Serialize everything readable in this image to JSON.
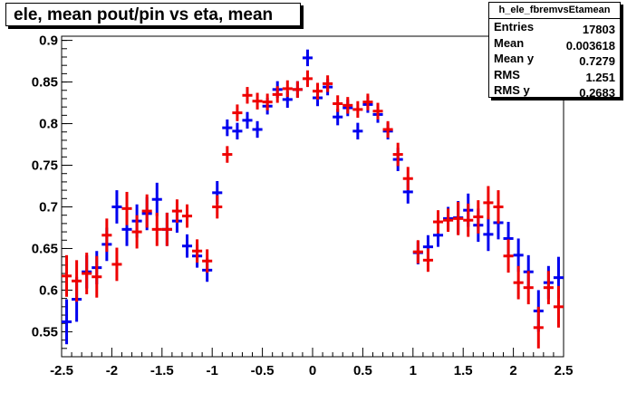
{
  "title": "ele, mean pout/pin vs eta, mean",
  "stats": {
    "name": "h_ele_fbremvsEtamean",
    "rows": [
      {
        "label": "Entries",
        "value": "17803"
      },
      {
        "label": "Mean",
        "value": "0.003618"
      },
      {
        "label": "Mean y",
        "value": "0.7279"
      },
      {
        "label": "RMS",
        "value": "1.251"
      },
      {
        "label": "RMS y",
        "value": "0.2683"
      }
    ]
  },
  "chart_data": {
    "type": "scatter",
    "title": "ele, mean pout/pin vs eta, mean",
    "xlabel": "",
    "ylabel": "",
    "xlim": [
      -2.5,
      2.5
    ],
    "ylim": [
      0.52,
      0.905
    ],
    "xticks": [
      -2.5,
      -2,
      -1.5,
      -1,
      -0.5,
      0,
      0.5,
      1,
      1.5,
      2,
      2.5
    ],
    "xtick_labels": [
      "-2.5",
      "-2",
      "-1.5",
      "-1",
      "-0.5",
      "0",
      "0.5",
      "1",
      "1.5",
      "2",
      "2.5"
    ],
    "yticks": [
      0.55,
      0.6,
      0.65,
      0.7,
      0.75,
      0.8,
      0.85,
      0.9
    ],
    "ytick_labels": [
      "0.55",
      "0.6",
      "0.65",
      "0.7",
      "0.75",
      "0.8",
      "0.85",
      "0.9"
    ],
    "bin_half_width": 0.05,
    "series": [
      {
        "color": "#0000ee",
        "points": [
          {
            "x": -2.45,
            "y": 0.562,
            "err": 0.027
          },
          {
            "x": -2.35,
            "y": 0.589,
            "err": 0.027
          },
          {
            "x": -2.25,
            "y": 0.622,
            "err": 0.02
          },
          {
            "x": -2.15,
            "y": 0.627,
            "err": 0.02
          },
          {
            "x": -2.05,
            "y": 0.655,
            "err": 0.02
          },
          {
            "x": -1.95,
            "y": 0.7,
            "err": 0.02
          },
          {
            "x": -1.85,
            "y": 0.673,
            "err": 0.02
          },
          {
            "x": -1.75,
            "y": 0.683,
            "err": 0.02
          },
          {
            "x": -1.65,
            "y": 0.692,
            "err": 0.02
          },
          {
            "x": -1.55,
            "y": 0.709,
            "err": 0.02
          },
          {
            "x": -1.45,
            "y": 0.673,
            "err": 0.02
          },
          {
            "x": -1.35,
            "y": 0.683,
            "err": 0.014
          },
          {
            "x": -1.25,
            "y": 0.653,
            "err": 0.014
          },
          {
            "x": -1.15,
            "y": 0.641,
            "err": 0.014
          },
          {
            "x": -1.05,
            "y": 0.624,
            "err": 0.014
          },
          {
            "x": -0.95,
            "y": 0.717,
            "err": 0.014
          },
          {
            "x": -0.85,
            "y": 0.795,
            "err": 0.01
          },
          {
            "x": -0.75,
            "y": 0.791,
            "err": 0.01
          },
          {
            "x": -0.65,
            "y": 0.804,
            "err": 0.01
          },
          {
            "x": -0.55,
            "y": 0.793,
            "err": 0.01
          },
          {
            "x": -0.45,
            "y": 0.821,
            "err": 0.01
          },
          {
            "x": -0.35,
            "y": 0.841,
            "err": 0.01
          },
          {
            "x": -0.25,
            "y": 0.829,
            "err": 0.01
          },
          {
            "x": -0.15,
            "y": 0.841,
            "err": 0.01
          },
          {
            "x": -0.05,
            "y": 0.879,
            "err": 0.01
          },
          {
            "x": 0.05,
            "y": 0.831,
            "err": 0.01
          },
          {
            "x": 0.15,
            "y": 0.844,
            "err": 0.01
          },
          {
            "x": 0.25,
            "y": 0.808,
            "err": 0.01
          },
          {
            "x": 0.35,
            "y": 0.819,
            "err": 0.01
          },
          {
            "x": 0.45,
            "y": 0.791,
            "err": 0.01
          },
          {
            "x": 0.55,
            "y": 0.823,
            "err": 0.01
          },
          {
            "x": 0.65,
            "y": 0.811,
            "err": 0.01
          },
          {
            "x": 0.75,
            "y": 0.791,
            "err": 0.01
          },
          {
            "x": 0.85,
            "y": 0.757,
            "err": 0.014
          },
          {
            "x": 0.95,
            "y": 0.718,
            "err": 0.014
          },
          {
            "x": 1.05,
            "y": 0.645,
            "err": 0.014
          },
          {
            "x": 1.15,
            "y": 0.652,
            "err": 0.014
          },
          {
            "x": 1.25,
            "y": 0.666,
            "err": 0.014
          },
          {
            "x": 1.35,
            "y": 0.686,
            "err": 0.014
          },
          {
            "x": 1.45,
            "y": 0.687,
            "err": 0.02
          },
          {
            "x": 1.55,
            "y": 0.696,
            "err": 0.02
          },
          {
            "x": 1.65,
            "y": 0.678,
            "err": 0.02
          },
          {
            "x": 1.75,
            "y": 0.667,
            "err": 0.02
          },
          {
            "x": 1.85,
            "y": 0.681,
            "err": 0.02
          },
          {
            "x": 1.95,
            "y": 0.662,
            "err": 0.02
          },
          {
            "x": 2.05,
            "y": 0.642,
            "err": 0.02
          },
          {
            "x": 2.15,
            "y": 0.622,
            "err": 0.02
          },
          {
            "x": 2.25,
            "y": 0.575,
            "err": 0.025
          },
          {
            "x": 2.35,
            "y": 0.609,
            "err": 0.02
          },
          {
            "x": 2.45,
            "y": 0.615,
            "err": 0.025
          }
        ]
      },
      {
        "color": "#ee0000",
        "points": [
          {
            "x": -2.45,
            "y": 0.617,
            "err": 0.025
          },
          {
            "x": -2.35,
            "y": 0.611,
            "err": 0.025
          },
          {
            "x": -2.25,
            "y": 0.62,
            "err": 0.025
          },
          {
            "x": -2.15,
            "y": 0.616,
            "err": 0.025
          },
          {
            "x": -2.05,
            "y": 0.666,
            "err": 0.02
          },
          {
            "x": -1.95,
            "y": 0.631,
            "err": 0.02
          },
          {
            "x": -1.85,
            "y": 0.698,
            "err": 0.02
          },
          {
            "x": -1.75,
            "y": 0.67,
            "err": 0.02
          },
          {
            "x": -1.65,
            "y": 0.695,
            "err": 0.02
          },
          {
            "x": -1.55,
            "y": 0.673,
            "err": 0.02
          },
          {
            "x": -1.45,
            "y": 0.673,
            "err": 0.02
          },
          {
            "x": -1.35,
            "y": 0.695,
            "err": 0.014
          },
          {
            "x": -1.25,
            "y": 0.689,
            "err": 0.014
          },
          {
            "x": -1.15,
            "y": 0.647,
            "err": 0.014
          },
          {
            "x": -1.05,
            "y": 0.635,
            "err": 0.014
          },
          {
            "x": -0.95,
            "y": 0.7,
            "err": 0.014
          },
          {
            "x": -0.85,
            "y": 0.763,
            "err": 0.01
          },
          {
            "x": -0.75,
            "y": 0.813,
            "err": 0.01
          },
          {
            "x": -0.65,
            "y": 0.834,
            "err": 0.01
          },
          {
            "x": -0.55,
            "y": 0.827,
            "err": 0.01
          },
          {
            "x": -0.45,
            "y": 0.826,
            "err": 0.01
          },
          {
            "x": -0.35,
            "y": 0.835,
            "err": 0.01
          },
          {
            "x": -0.25,
            "y": 0.842,
            "err": 0.01
          },
          {
            "x": -0.15,
            "y": 0.841,
            "err": 0.01
          },
          {
            "x": -0.05,
            "y": 0.854,
            "err": 0.01
          },
          {
            "x": 0.05,
            "y": 0.839,
            "err": 0.01
          },
          {
            "x": 0.15,
            "y": 0.848,
            "err": 0.01
          },
          {
            "x": 0.25,
            "y": 0.824,
            "err": 0.01
          },
          {
            "x": 0.35,
            "y": 0.822,
            "err": 0.01
          },
          {
            "x": 0.45,
            "y": 0.817,
            "err": 0.01
          },
          {
            "x": 0.55,
            "y": 0.826,
            "err": 0.01
          },
          {
            "x": 0.65,
            "y": 0.815,
            "err": 0.01
          },
          {
            "x": 0.75,
            "y": 0.793,
            "err": 0.01
          },
          {
            "x": 0.85,
            "y": 0.763,
            "err": 0.014
          },
          {
            "x": 0.95,
            "y": 0.734,
            "err": 0.014
          },
          {
            "x": 1.05,
            "y": 0.646,
            "err": 0.014
          },
          {
            "x": 1.15,
            "y": 0.636,
            "err": 0.014
          },
          {
            "x": 1.25,
            "y": 0.682,
            "err": 0.014
          },
          {
            "x": 1.35,
            "y": 0.684,
            "err": 0.014
          },
          {
            "x": 1.45,
            "y": 0.686,
            "err": 0.02
          },
          {
            "x": 1.55,
            "y": 0.684,
            "err": 0.02
          },
          {
            "x": 1.65,
            "y": 0.688,
            "err": 0.02
          },
          {
            "x": 1.75,
            "y": 0.705,
            "err": 0.02
          },
          {
            "x": 1.85,
            "y": 0.7,
            "err": 0.02
          },
          {
            "x": 1.95,
            "y": 0.641,
            "err": 0.02
          },
          {
            "x": 2.05,
            "y": 0.609,
            "err": 0.02
          },
          {
            "x": 2.15,
            "y": 0.603,
            "err": 0.02
          },
          {
            "x": 2.25,
            "y": 0.555,
            "err": 0.025
          },
          {
            "x": 2.35,
            "y": 0.603,
            "err": 0.02
          },
          {
            "x": 2.45,
            "y": 0.58,
            "err": 0.025
          }
        ]
      }
    ]
  }
}
